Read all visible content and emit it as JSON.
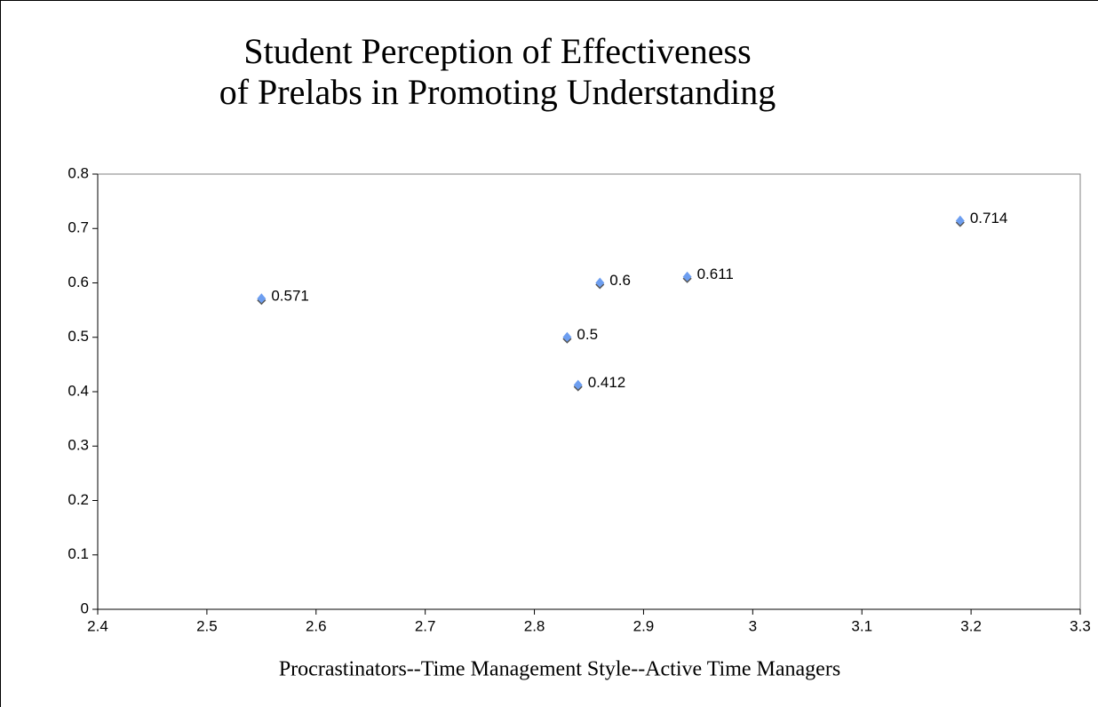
{
  "chart_data": {
    "type": "scatter",
    "title": [
      "Student Perception of Effectiveness",
      "of Prelabs in Promoting Understanding"
    ],
    "x_label": "Procrastinators--Time Management Style--Active Time Managers",
    "x": [
      2.55,
      2.83,
      2.84,
      2.86,
      2.94,
      3.19
    ],
    "values": [
      0.571,
      0.5,
      0.412,
      0.6,
      0.611,
      0.714
    ],
    "color": "#6d9ef0",
    "xlim": [
      2.4,
      3.3
    ],
    "xticks": [
      2.4,
      2.5,
      2.6,
      2.7,
      2.8,
      2.9,
      3,
      3.1,
      3.2,
      3.3
    ],
    "ylim": [
      0,
      0.8
    ],
    "yticks": [
      0,
      0.1,
      0.2,
      0.3,
      0.4,
      0.5,
      0.6,
      0.7,
      0.8
    ],
    "grid": false
  }
}
